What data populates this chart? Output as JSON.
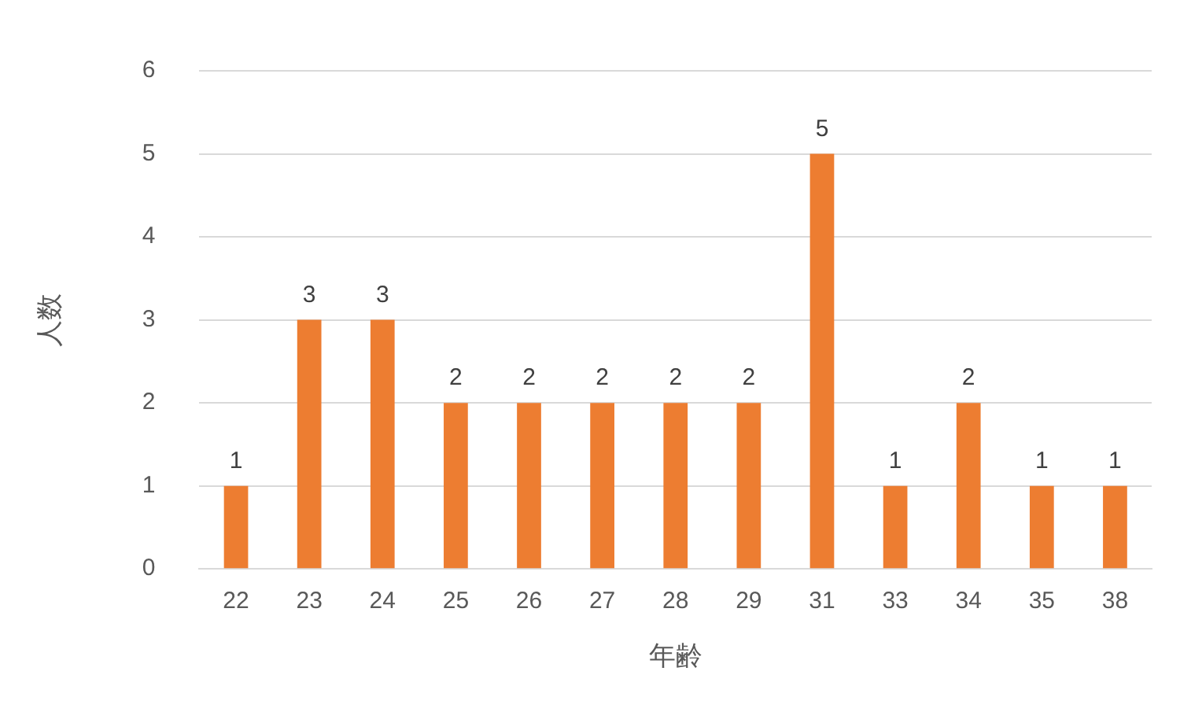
{
  "chart_data": {
    "type": "bar",
    "xlabel": "年齢",
    "ylabel": "人数",
    "categories": [
      "22",
      "23",
      "24",
      "25",
      "26",
      "27",
      "28",
      "29",
      "31",
      "33",
      "34",
      "35",
      "38"
    ],
    "values": [
      1,
      3,
      3,
      2,
      2,
      2,
      2,
      2,
      5,
      1,
      2,
      1,
      1
    ],
    "color": "#ed7d31",
    "ylim": [
      0,
      6
    ],
    "yticks": [
      0,
      1,
      2,
      3,
      4,
      5,
      6
    ],
    "grid": "y",
    "data_labels": true
  }
}
